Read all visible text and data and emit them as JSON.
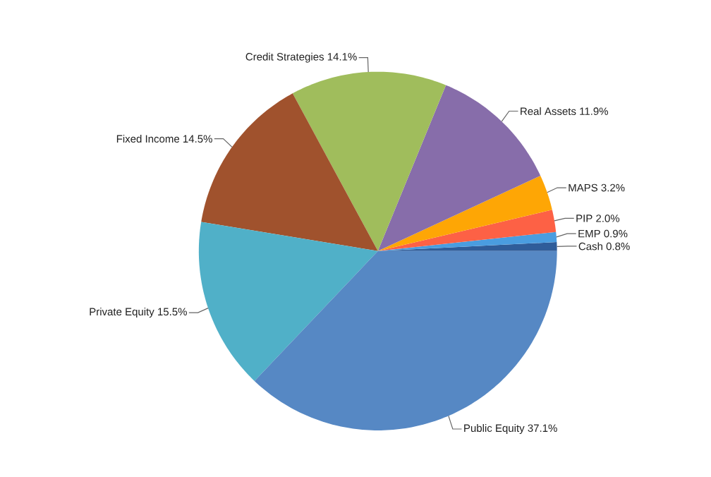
{
  "chart_data": {
    "type": "pie",
    "categories": [
      "Cash",
      "EMP",
      "PIP",
      "MAPS",
      "Real Assets",
      "Credit Strategies",
      "Fixed Income",
      "Private Equity",
      "Public Equity"
    ],
    "values": [
      0.8,
      0.9,
      2.0,
      3.2,
      11.9,
      14.1,
      14.5,
      15.5,
      37.1
    ],
    "value_labels": [
      "0.8%",
      "0.9%",
      "2.0%",
      "3.2%",
      "11.9%",
      "14.1%",
      "14.5%",
      "15.5%",
      "37.1%"
    ],
    "colors": [
      "#2f5d9a",
      "#4a9de0",
      "#fd6145",
      "#fea605",
      "#876daa",
      "#a0bd5c",
      "#a0522d",
      "#50b0c8",
      "#5688c4"
    ]
  }
}
